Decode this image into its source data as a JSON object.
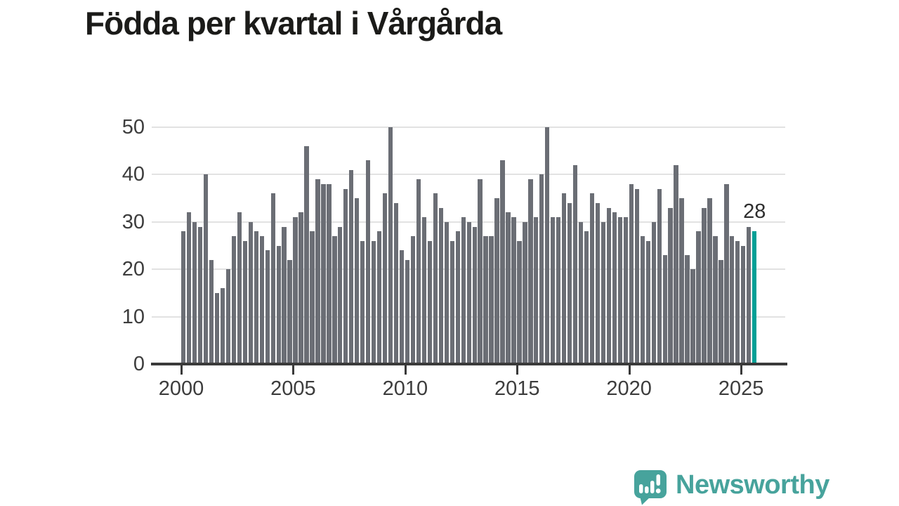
{
  "title": "Födda per kvartal i Vårgårda",
  "chart_data": {
    "type": "bar",
    "title": "Födda per kvartal i Vårgårda",
    "frequency": "quarterly",
    "x_start": "2000-Q1",
    "x_end": "2025-Q3",
    "values": [
      28,
      32,
      30,
      29,
      40,
      22,
      15,
      16,
      20,
      27,
      32,
      26,
      30,
      28,
      27,
      24,
      36,
      25,
      29,
      22,
      31,
      32,
      46,
      28,
      39,
      38,
      38,
      27,
      29,
      37,
      41,
      35,
      26,
      43,
      26,
      28,
      36,
      50,
      34,
      24,
      22,
      27,
      39,
      31,
      26,
      36,
      33,
      30,
      26,
      28,
      31,
      30,
      29,
      39,
      27,
      27,
      35,
      43,
      32,
      31,
      26,
      30,
      39,
      31,
      40,
      50,
      31,
      31,
      36,
      34,
      42,
      30,
      28,
      36,
      34,
      30,
      33,
      32,
      31,
      31,
      38,
      37,
      27,
      26,
      30,
      37,
      23,
      33,
      42,
      35,
      23,
      20,
      28,
      33,
      35,
      27,
      22,
      38,
      27,
      26,
      25,
      29,
      28
    ],
    "x_tick_labels": [
      "2000",
      "2005",
      "2010",
      "2015",
      "2020",
      "2025"
    ],
    "y_tick_labels": [
      "0",
      "10",
      "20",
      "30",
      "40",
      "50"
    ],
    "ylim": [
      0,
      50
    ],
    "grid": "horizontal",
    "legend": "none",
    "bar_color": "#6b6e75",
    "highlight": {
      "index": 102,
      "label": "28",
      "color": "#00a096"
    },
    "axis_color": "#3a3a3a",
    "grid_color": "#e2e2e2",
    "tick_label_color": "#3d3d3d"
  },
  "branding": {
    "name": "Newsworthy",
    "color": "#47a39c"
  }
}
